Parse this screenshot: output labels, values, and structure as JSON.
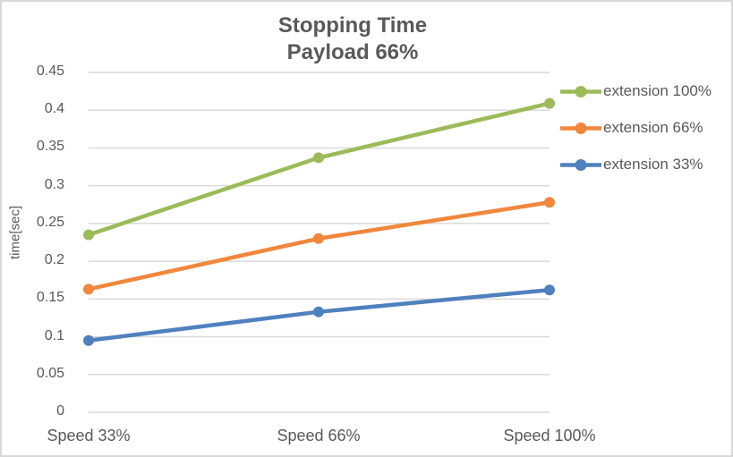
{
  "window": {
    "background": "#FFFFFF",
    "border_color": "#D8D8D8"
  },
  "chart_data": {
    "type": "line",
    "title": "Stopping Time",
    "subtitle": "Payload 66%",
    "ylabel": "time[sec]",
    "xlabel": "",
    "categories": [
      "Speed 33%",
      "Speed 66%",
      "Speed 100%"
    ],
    "series": [
      {
        "name": "extension 100%",
        "color": "#9BBB59",
        "values": [
          0.235,
          0.337,
          0.409
        ]
      },
      {
        "name": "extension 66%",
        "color": "#F0873C",
        "values": [
          0.163,
          0.23,
          0.278
        ]
      },
      {
        "name": "extension 33%",
        "color": "#4E81BD",
        "values": [
          0.095,
          0.133,
          0.162
        ]
      }
    ],
    "ylim": [
      0,
      0.45
    ],
    "ytick_step": 0.05,
    "ytick_labels": [
      "0",
      "0.05",
      "0.1",
      "0.15",
      "0.2",
      "0.25",
      "0.3",
      "0.35",
      "0.4",
      "0.45"
    ],
    "grid": true,
    "gridline_color": "#D9D9D9",
    "text_color": "#595959",
    "legend_position": "right",
    "marker": "circle"
  }
}
